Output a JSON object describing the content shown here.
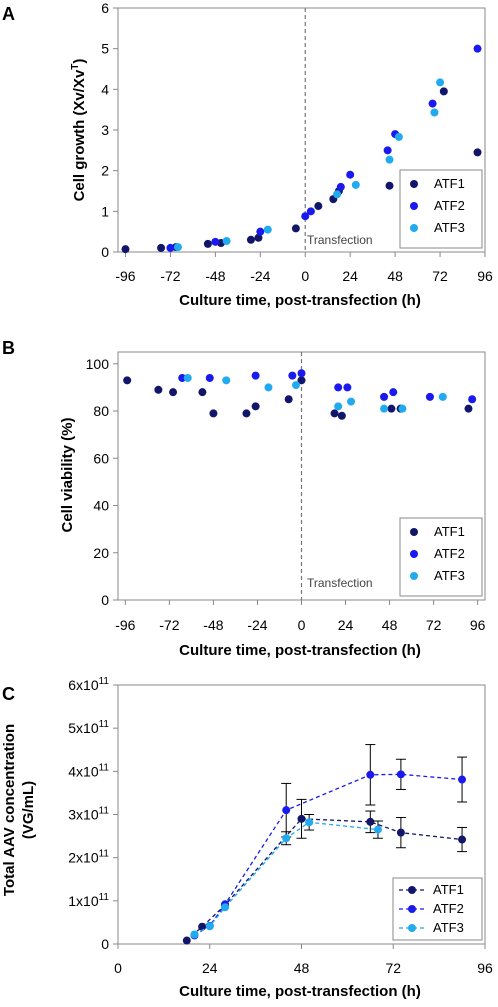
{
  "colors": {
    "ATF1": "#12166b",
    "ATF2": "#1a1aee",
    "ATF3": "#22aaee",
    "axis": "#888888",
    "vline": "#777777"
  },
  "chart_data": [
    {
      "panel": "A",
      "type": "scatter",
      "xlabel": "Culture time, post-transfection (h)",
      "ylabel": "Cell growth (Xv/Xv",
      "ylabel_sup": "T",
      "ylabel_end": ")",
      "xlim": [
        -100,
        96
      ],
      "ylim": [
        0,
        6
      ],
      "xticks": [
        -96,
        -72,
        -48,
        -24,
        0,
        24,
        48,
        72,
        96
      ],
      "yticks": [
        0,
        1,
        2,
        3,
        4,
        5,
        6
      ],
      "annotation": "Transfection",
      "legend_position": "bottom-right",
      "series": [
        {
          "name": "ATF1",
          "points": [
            [
              -96,
              0.07
            ],
            [
              -77,
              0.1
            ],
            [
              -69,
              0.12
            ],
            [
              -52,
              0.2
            ],
            [
              -45,
              0.22
            ],
            [
              -29,
              0.3
            ],
            [
              -25,
              0.35
            ],
            [
              -5,
              0.58
            ],
            [
              7,
              1.13
            ],
            [
              15,
              1.3
            ],
            [
              18,
              1.5
            ],
            [
              45,
              1.63
            ],
            [
              74,
              3.95
            ],
            [
              92,
              2.45
            ]
          ]
        },
        {
          "name": "ATF2",
          "points": [
            [
              -72,
              0.1
            ],
            [
              -48,
              0.25
            ],
            [
              -24,
              0.5
            ],
            [
              0,
              0.88
            ],
            [
              3,
              1.0
            ],
            [
              19,
              1.6
            ],
            [
              24,
              1.9
            ],
            [
              44,
              2.5
            ],
            [
              48,
              2.9
            ],
            [
              68,
              3.65
            ],
            [
              92,
              5.0
            ]
          ]
        },
        {
          "name": "ATF3",
          "points": [
            [
              -68,
              0.12
            ],
            [
              -42,
              0.27
            ],
            [
              -20,
              0.55
            ],
            [
              17,
              1.42
            ],
            [
              27,
              1.65
            ],
            [
              45,
              2.27
            ],
            [
              50,
              2.83
            ],
            [
              69,
              3.43
            ],
            [
              72,
              4.17
            ]
          ]
        }
      ]
    },
    {
      "panel": "B",
      "type": "scatter",
      "xlabel": "Culture time, post-transfection (h)",
      "ylabel": "Cell viability (%)",
      "xlim": [
        -100,
        100
      ],
      "ylim": [
        0,
        105
      ],
      "xticks": [
        -96,
        -72,
        -48,
        -24,
        0,
        24,
        48,
        72,
        96
      ],
      "yticks": [
        0,
        20,
        40,
        60,
        80,
        100
      ],
      "annotation": "Transfection",
      "legend_position": "bottom-right",
      "series": [
        {
          "name": "ATF1",
          "points": [
            [
              -95,
              93
            ],
            [
              -78,
              89
            ],
            [
              -70,
              88
            ],
            [
              -54,
              88
            ],
            [
              -48,
              79
            ],
            [
              -30,
              79
            ],
            [
              -25,
              82
            ],
            [
              -7,
              85
            ],
            [
              0,
              93
            ],
            [
              18,
              79
            ],
            [
              22,
              78
            ],
            [
              49,
              81
            ],
            [
              54,
              81
            ],
            [
              91,
              81
            ]
          ]
        },
        {
          "name": "ATF2",
          "points": [
            [
              -65,
              94
            ],
            [
              -50,
              94
            ],
            [
              -25,
              95
            ],
            [
              -5,
              95
            ],
            [
              0,
              96
            ],
            [
              20,
              90
            ],
            [
              25,
              90
            ],
            [
              45,
              86
            ],
            [
              50,
              88
            ],
            [
              70,
              86
            ],
            [
              93,
              85
            ]
          ]
        },
        {
          "name": "ATF3",
          "points": [
            [
              -62,
              94
            ],
            [
              -41,
              93
            ],
            [
              -18,
              90
            ],
            [
              -3,
              91
            ],
            [
              20,
              82
            ],
            [
              27,
              84
            ],
            [
              45,
              81
            ],
            [
              55,
              81
            ],
            [
              77,
              86
            ]
          ]
        }
      ]
    },
    {
      "panel": "C",
      "type": "line",
      "xlabel": "Culture time, post-transfection (h)",
      "ylabel_line1": "Total AAV concentration",
      "ylabel_line2": "(VG/mL)",
      "xlim": [
        0,
        96
      ],
      "ylim": [
        0,
        600000000000
      ],
      "xticks": [
        0,
        24,
        48,
        72,
        96
      ],
      "yticks": [
        {
          "value": 0,
          "label": "0"
        },
        {
          "value": 100000000000,
          "label": "1x10",
          "exp": "11"
        },
        {
          "value": 200000000000,
          "label": "2x10",
          "exp": "11"
        },
        {
          "value": 300000000000,
          "label": "3x10",
          "exp": "11"
        },
        {
          "value": 400000000000,
          "label": "4x10",
          "exp": "11"
        },
        {
          "value": 500000000000,
          "label": "5x10",
          "exp": "11"
        },
        {
          "value": 600000000000,
          "label": "6x10",
          "exp": "11"
        }
      ],
      "legend_position": "bottom-right",
      "series": [
        {
          "name": "ATF1",
          "x": [
            18,
            22,
            28,
            48,
            66,
            74,
            90
          ],
          "y": [
            8000000000.0,
            40000000000.0,
            90000000000.0,
            290000000000.0,
            283000000000.0,
            258000000000.0,
            242000000000.0
          ],
          "err": [
            0,
            0,
            0,
            45000000000.0,
            25000000000.0,
            35000000000.0,
            28000000000.0
          ]
        },
        {
          "name": "ATF2",
          "x": [
            20,
            24,
            28,
            44,
            66,
            74,
            90
          ],
          "y": [
            20000000000.0,
            42000000000.0,
            92000000000.0,
            310000000000.0,
            392000000000.0,
            393000000000.0,
            381000000000.0
          ],
          "err": [
            0,
            0,
            0,
            62000000000.0,
            70000000000.0,
            35000000000.0,
            52000000000.0
          ]
        },
        {
          "name": "ATF3",
          "x": [
            20,
            24,
            28,
            44,
            50,
            68
          ],
          "y": [
            22000000000.0,
            41000000000.0,
            85000000000.0,
            245000000000.0,
            282000000000.0,
            265000000000.0
          ],
          "err": [
            0,
            0,
            0,
            15000000000.0,
            18000000000.0,
            20000000000.0
          ]
        }
      ]
    }
  ]
}
